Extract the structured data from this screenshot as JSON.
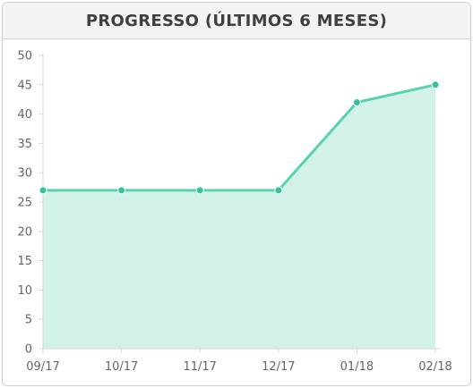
{
  "widget": {
    "title": "PROGRESSO (ÚLTIMOS 6 MESES)"
  },
  "colors": {
    "line": "#5ad1b3",
    "fill": "#d2f1e9",
    "point": "#36c1a0",
    "axis": "#d9d9d9",
    "tick_text": "#666666"
  },
  "chart_data": {
    "type": "area",
    "title": "PROGRESSO (ÚLTIMOS 6 MESES)",
    "xlabel": "",
    "ylabel": "",
    "categories": [
      "09/17",
      "10/17",
      "11/17",
      "12/17",
      "01/18",
      "02/18"
    ],
    "series": [
      {
        "values": [
          27,
          27,
          27,
          27,
          42,
          45
        ]
      }
    ],
    "ylim": [
      0,
      50
    ],
    "yticks": [
      0,
      5,
      10,
      15,
      20,
      25,
      30,
      35,
      40,
      45,
      50
    ],
    "grid": false,
    "legend": "none"
  }
}
